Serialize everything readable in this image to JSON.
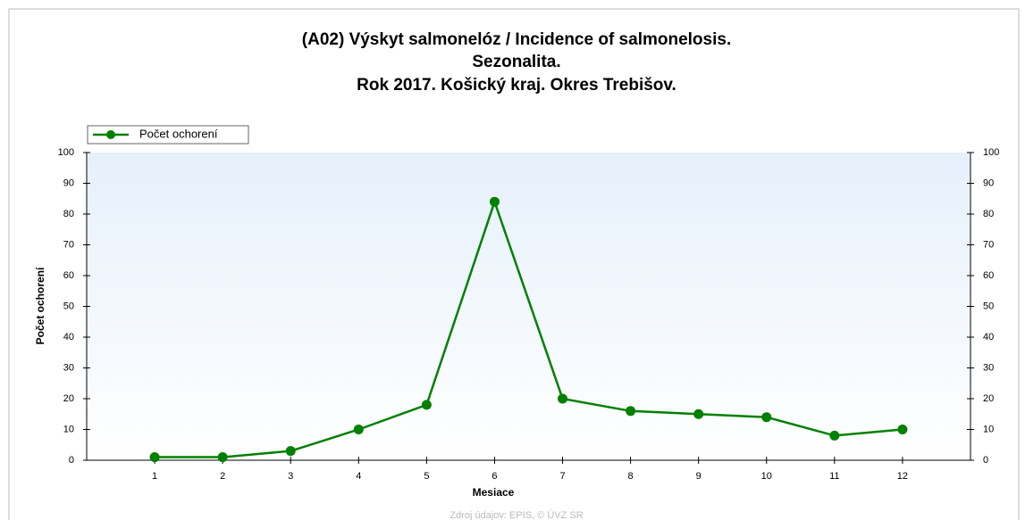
{
  "chart_data": {
    "type": "line",
    "title": [
      "(A02) Výskyt salmonelóz / Incidence of salmonelosis.",
      "Sezonalita.",
      "Rok 2017. Košický kraj. Okres Trebišov."
    ],
    "x_label": "Mesiace",
    "y_label": "Počet ochorení",
    "source": "Zdroj údajov: EPIS, © ÚVZ SR",
    "x": [
      1,
      2,
      3,
      4,
      5,
      6,
      7,
      8,
      9,
      10,
      11,
      12
    ],
    "series": [
      {
        "name": "Počet ochorení",
        "color": "#008000",
        "values": [
          1,
          1,
          3,
          10,
          18,
          84,
          20,
          16,
          15,
          14,
          8,
          10
        ]
      }
    ],
    "xlim": [
      0,
      13
    ],
    "xticks": [
      1,
      2,
      3,
      4,
      5,
      6,
      7,
      8,
      9,
      10,
      11,
      12
    ],
    "ylim": [
      0,
      100
    ],
    "yticks": [
      0,
      10,
      20,
      30,
      40,
      50,
      60,
      70,
      80,
      90,
      100
    ],
    "legend": "top-left"
  }
}
